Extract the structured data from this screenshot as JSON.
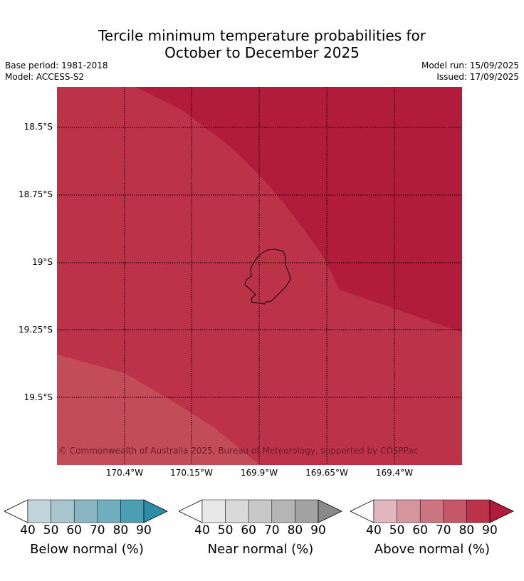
{
  "title_line1": "Tercile minimum temperature probabilities for",
  "title_line2": "October to December 2025",
  "base_period": "Base period: 1981-2018",
  "model": "Model: ACCESS-S2",
  "model_run": "Model run: 15/09/2025",
  "issued": "Issued: 17/09/2025",
  "copyright": "© Commonwealth of Australia 2025, Bureau of Meteorology, supported by COSPPac",
  "map": {
    "lat_labels": [
      "18.5°S",
      "18.75°S",
      "19°S",
      "19.25°S",
      "19.5°S"
    ],
    "lon_labels": [
      "170.4°W",
      "170.15°W",
      "169.9°W",
      "169.65°W",
      "169.4°W"
    ],
    "zones": [
      "Above normal 80–90%",
      "Above normal 70–80%",
      "Above normal 60–70%"
    ],
    "zone_colors": [
      "#b01c3a",
      "#bc3349",
      "#c24d59"
    ]
  },
  "colorbars": [
    {
      "label": "Below normal (%)",
      "ticks": [
        "40",
        "50",
        "60",
        "70",
        "80",
        "90"
      ],
      "colors": [
        "#ffffff",
        "#c0d4dc",
        "#a6c5cc",
        "#8ab6c3",
        "#6daebf",
        "#4c9eb3",
        "#2b8ea6"
      ]
    },
    {
      "label": "Near normal (%)",
      "ticks": [
        "40",
        "50",
        "60",
        "70",
        "80",
        "90"
      ],
      "colors": [
        "#ffffff",
        "#e8e8e8",
        "#d9d9d9",
        "#c8c8c8",
        "#b5b5b5",
        "#a2a2a2",
        "#8a8a8a"
      ]
    },
    {
      "label": "Above normal (%)",
      "ticks": [
        "40",
        "50",
        "60",
        "70",
        "80",
        "90"
      ],
      "colors": [
        "#ffffff",
        "#e2b6bd",
        "#d6959f",
        "#cd7580",
        "#c45866",
        "#bc3349",
        "#b01c3a"
      ]
    }
  ]
}
